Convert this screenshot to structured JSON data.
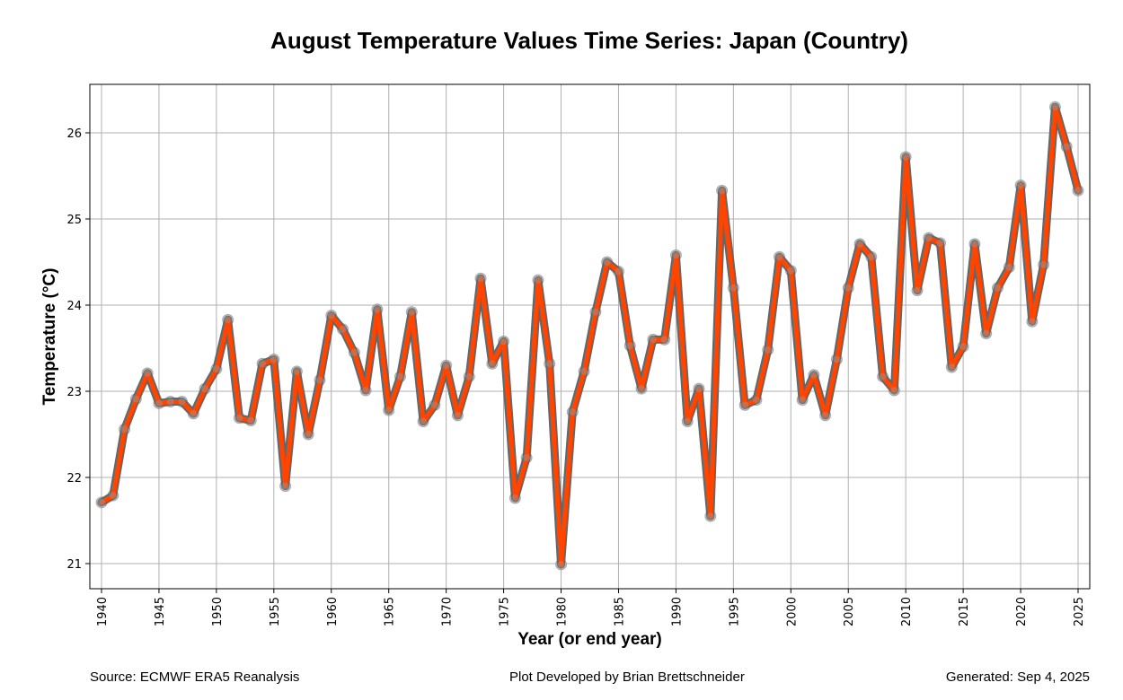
{
  "chart_data": {
    "type": "line",
    "title": "August Temperature Values Time Series: Japan (Country)",
    "xlabel": "Year (or end year)",
    "ylabel": "Temperature (°C)",
    "xlim": [
      1939,
      2026
    ],
    "ylim": [
      20.7,
      26.55
    ],
    "grid": true,
    "x_ticks": [
      1940,
      1945,
      1950,
      1955,
      1960,
      1965,
      1970,
      1975,
      1980,
      1985,
      1990,
      1995,
      2000,
      2005,
      2010,
      2015,
      2020,
      2025
    ],
    "y_ticks": [
      21,
      22,
      23,
      24,
      25,
      26
    ],
    "series": [
      {
        "name": "August Temperature",
        "line_color": "#ff4500",
        "outline_color": "#666666",
        "marker_color": "#a9a9a9",
        "x": [
          1940,
          1941,
          1942,
          1943,
          1944,
          1945,
          1946,
          1947,
          1948,
          1949,
          1950,
          1951,
          1952,
          1953,
          1954,
          1955,
          1956,
          1957,
          1958,
          1959,
          1960,
          1961,
          1962,
          1963,
          1964,
          1965,
          1966,
          1967,
          1968,
          1969,
          1970,
          1971,
          1972,
          1973,
          1974,
          1975,
          1976,
          1977,
          1978,
          1979,
          1980,
          1981,
          1982,
          1983,
          1984,
          1985,
          1986,
          1987,
          1988,
          1989,
          1990,
          1991,
          1992,
          1993,
          1994,
          1995,
          1996,
          1997,
          1998,
          1999,
          2000,
          2001,
          2002,
          2003,
          2004,
          2005,
          2006,
          2007,
          2008,
          2009,
          2010,
          2011,
          2012,
          2013,
          2014,
          2015,
          2016,
          2017,
          2018,
          2019,
          2020,
          2021,
          2022,
          2023,
          2024,
          2025
        ],
        "values": [
          21.71,
          21.79,
          22.56,
          22.91,
          23.21,
          22.86,
          22.88,
          22.88,
          22.74,
          23.03,
          23.26,
          23.83,
          22.69,
          22.66,
          23.32,
          23.37,
          21.9,
          23.23,
          22.5,
          23.13,
          23.88,
          23.72,
          23.45,
          23.01,
          23.95,
          22.78,
          23.17,
          23.92,
          22.65,
          22.84,
          23.3,
          22.72,
          23.17,
          24.31,
          23.32,
          23.58,
          21.76,
          22.23,
          24.29,
          23.32,
          20.99,
          22.76,
          23.23,
          23.92,
          24.5,
          24.39,
          23.53,
          23.03,
          23.6,
          23.6,
          24.58,
          22.65,
          23.03,
          21.55,
          25.33,
          24.2,
          22.84,
          22.9,
          23.48,
          24.56,
          24.4,
          22.9,
          23.19,
          22.72,
          23.37,
          24.2,
          24.71,
          24.56,
          23.17,
          23.01,
          25.72,
          24.17,
          24.78,
          24.72,
          23.28,
          23.52,
          24.71,
          23.67,
          24.2,
          24.44,
          25.39,
          23.81,
          24.47,
          26.3,
          25.84,
          25.33
        ]
      }
    ]
  },
  "footer": {
    "source": "Source: ECMWF ERA5 Reanalysis",
    "credit": "Plot Developed by Brian Brettschneider",
    "generated": "Generated: Sep 4, 2025"
  }
}
